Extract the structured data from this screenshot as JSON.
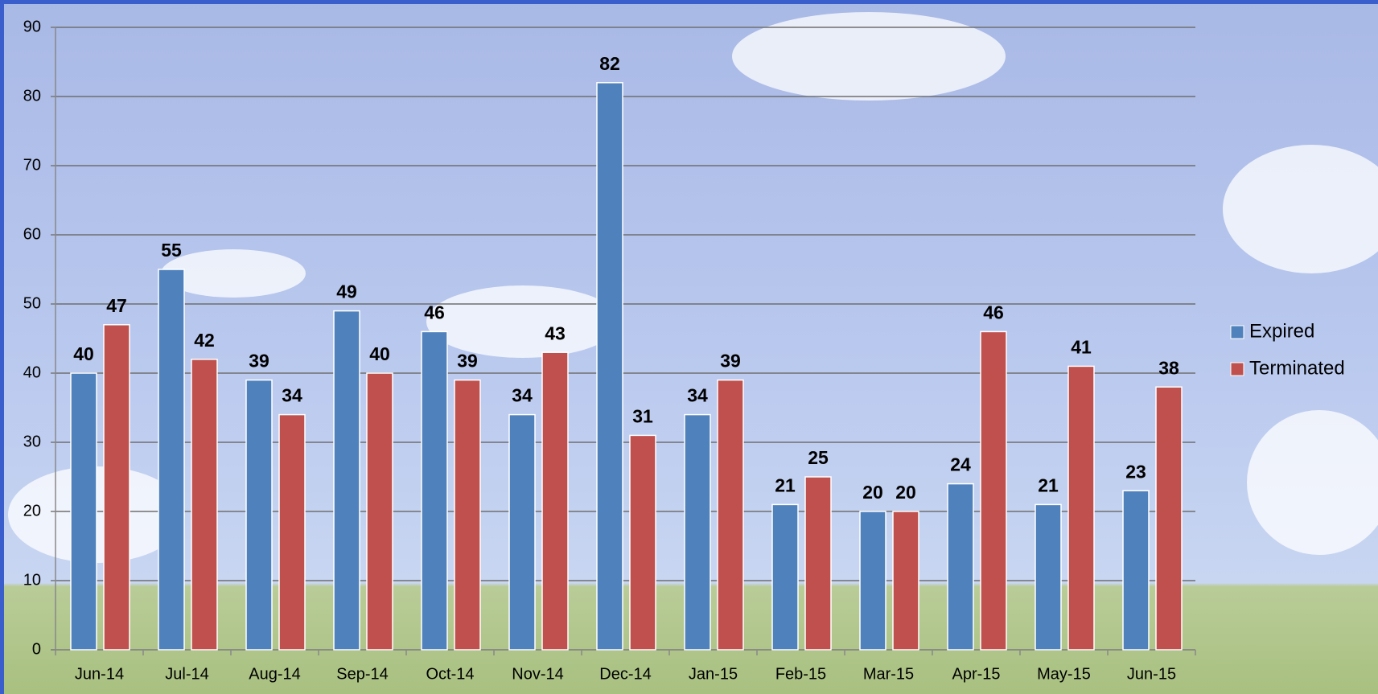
{
  "chart_data": {
    "type": "bar",
    "categories": [
      "Jun-14",
      "Jul-14",
      "Aug-14",
      "Sep-14",
      "Oct-14",
      "Nov-14",
      "Dec-14",
      "Jan-15",
      "Feb-15",
      "Mar-15",
      "Apr-15",
      "May-15",
      "Jun-15"
    ],
    "series": [
      {
        "name": "Expired",
        "color": "#4f81bd",
        "values": [
          40,
          55,
          39,
          49,
          46,
          34,
          82,
          34,
          21,
          20,
          24,
          21,
          23
        ]
      },
      {
        "name": "Terminated",
        "color": "#c0504d",
        "values": [
          47,
          42,
          34,
          40,
          39,
          43,
          31,
          39,
          25,
          20,
          46,
          41,
          38
        ]
      }
    ],
    "ylim": [
      0,
      90
    ],
    "yticks": [
      0,
      10,
      20,
      30,
      40,
      50,
      60,
      70,
      80,
      90
    ],
    "grid": true,
    "legend": "right",
    "data_labels": true
  }
}
